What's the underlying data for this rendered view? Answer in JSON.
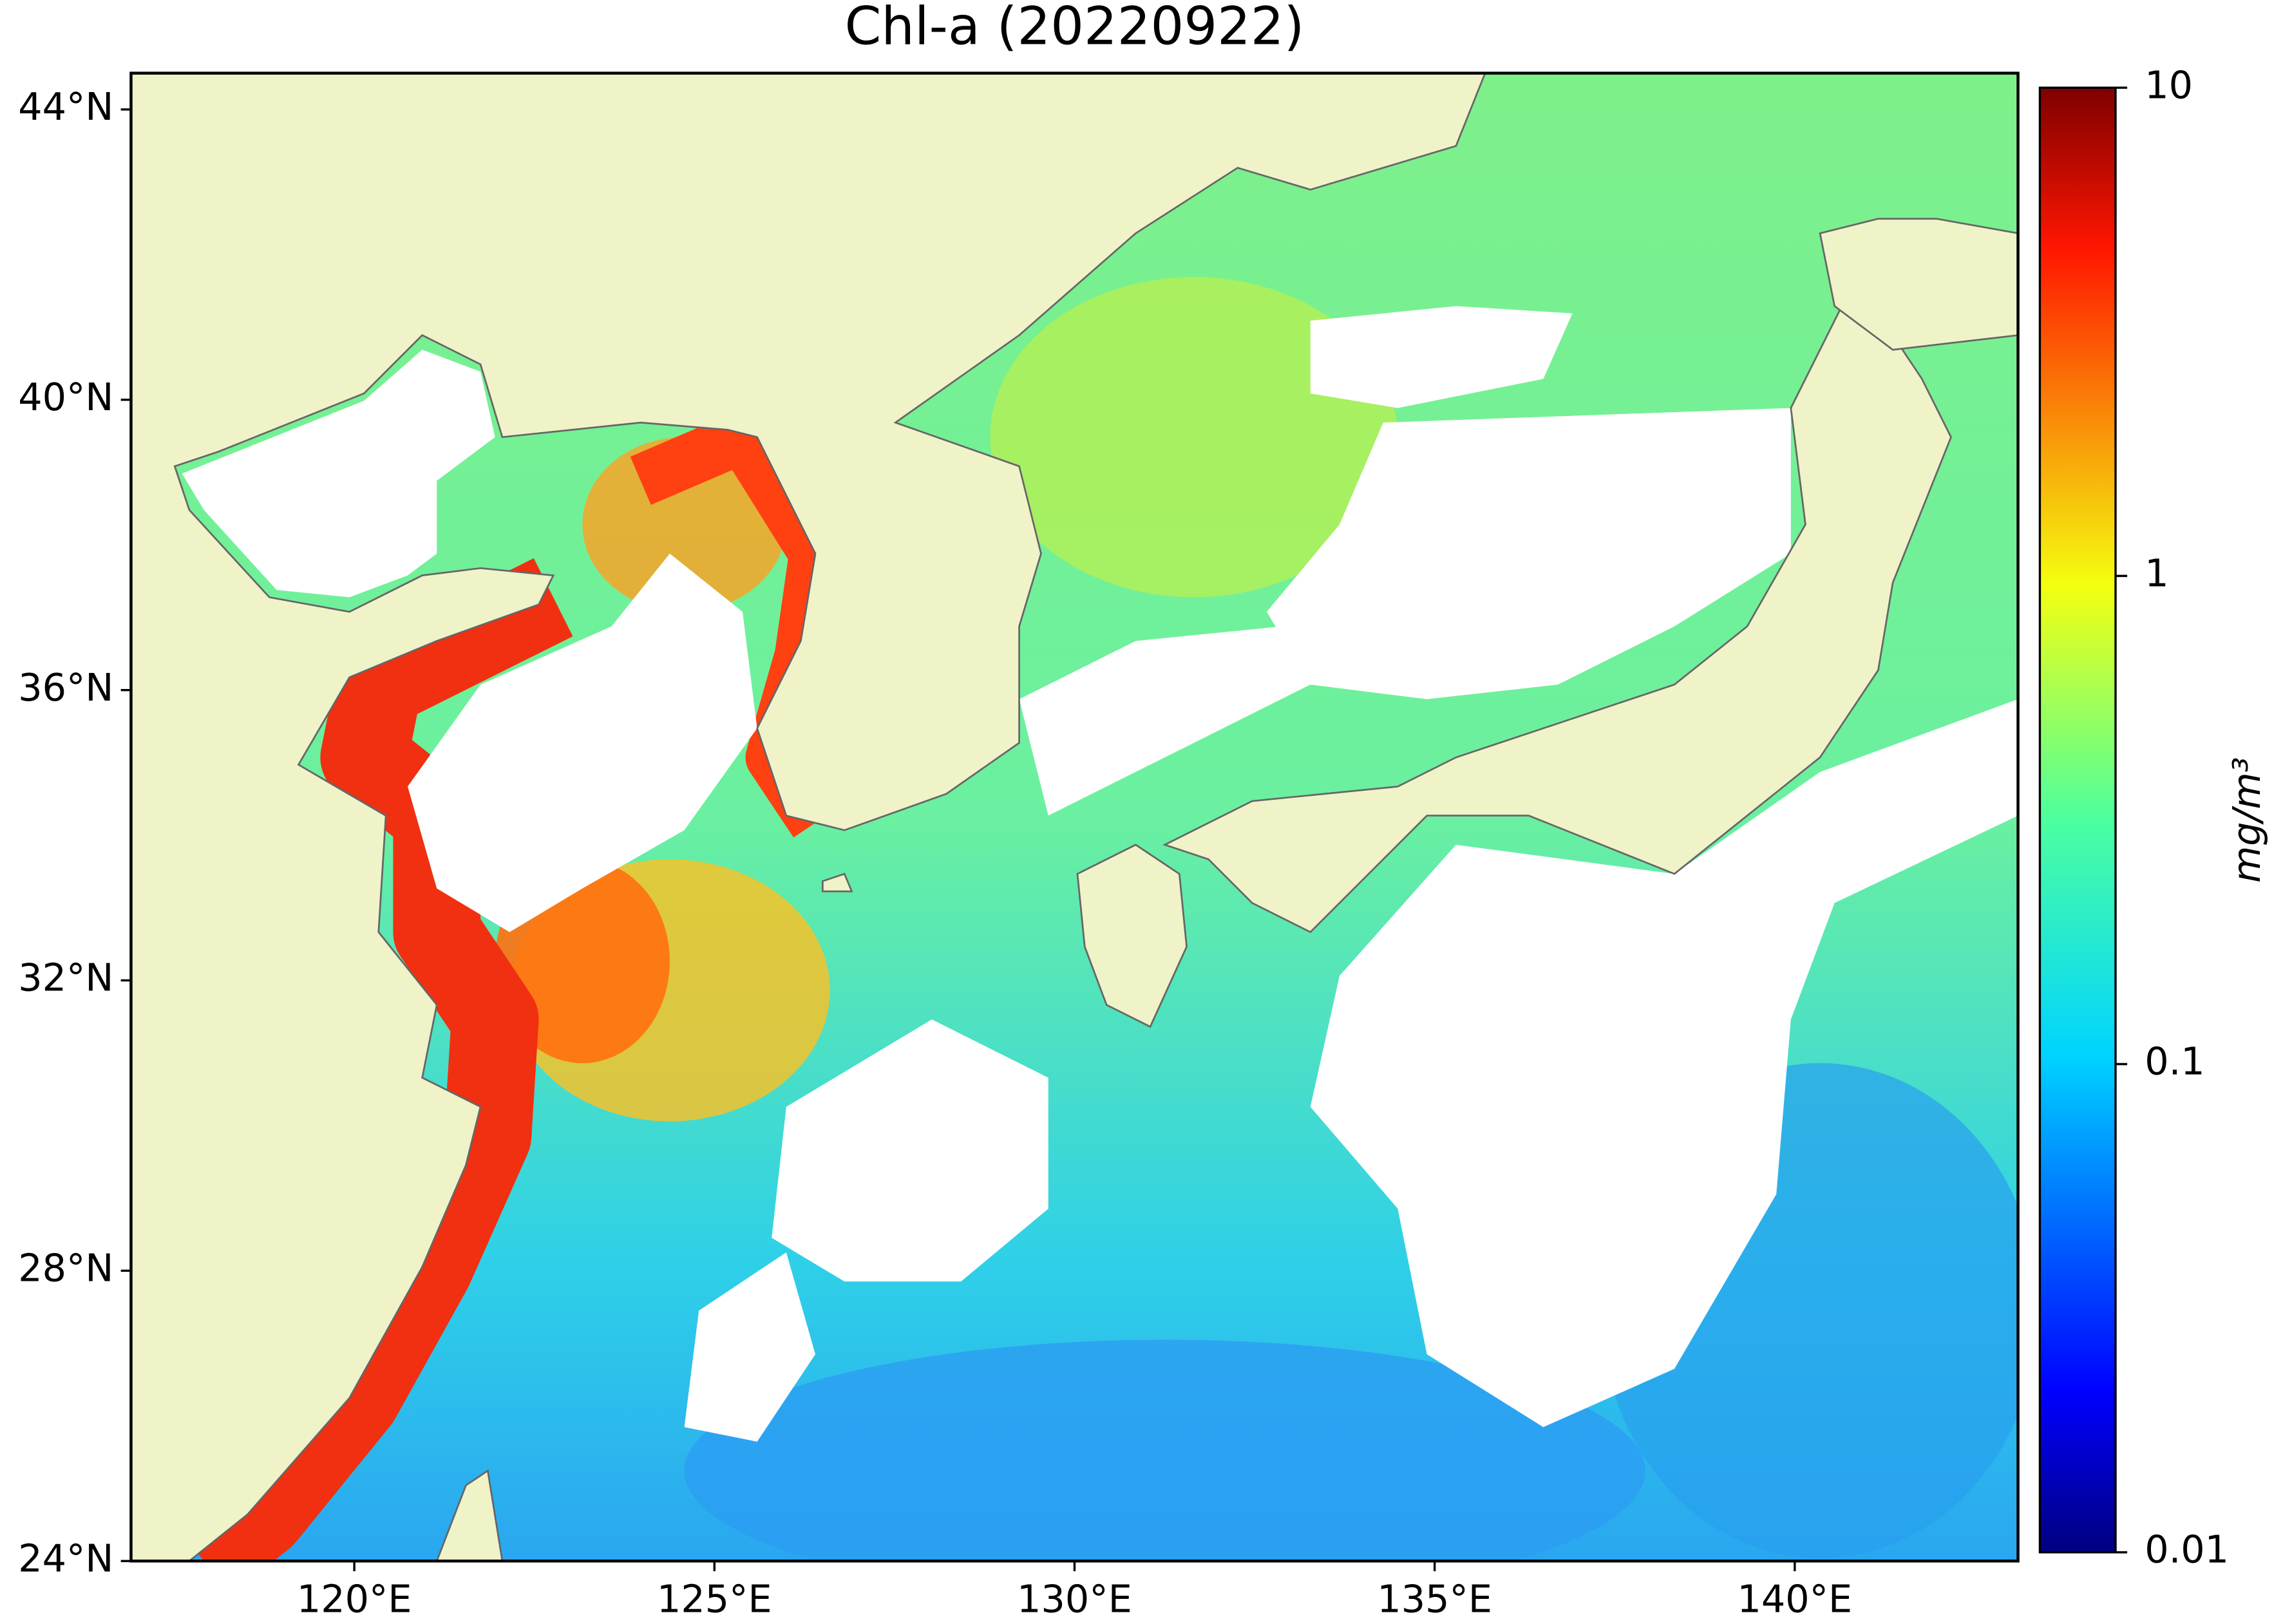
{
  "chart_data": {
    "type": "map",
    "title": "Chl-a (20220922)",
    "xlim": [
      116.9,
      143.1
    ],
    "ylim": [
      24,
      44.5
    ],
    "xticks": [
      {
        "value": 120,
        "label": "120°E"
      },
      {
        "value": 125,
        "label": "125°E"
      },
      {
        "value": 130,
        "label": "130°E"
      },
      {
        "value": 135,
        "label": "135°E"
      },
      {
        "value": 140,
        "label": "140°E"
      }
    ],
    "yticks": [
      {
        "value": 24,
        "label": "24°N"
      },
      {
        "value": 28,
        "label": "28°N"
      },
      {
        "value": 32,
        "label": "32°N"
      },
      {
        "value": 36,
        "label": "36°N"
      },
      {
        "value": 40,
        "label": "40°N"
      },
      {
        "value": 44,
        "label": "44°N"
      }
    ],
    "colorbar": {
      "label": "mg/m³",
      "lim": [
        0.01,
        10
      ],
      "ticks": [
        0.01,
        0.1,
        1,
        10
      ],
      "log": true,
      "colormap": "jet"
    }
  }
}
